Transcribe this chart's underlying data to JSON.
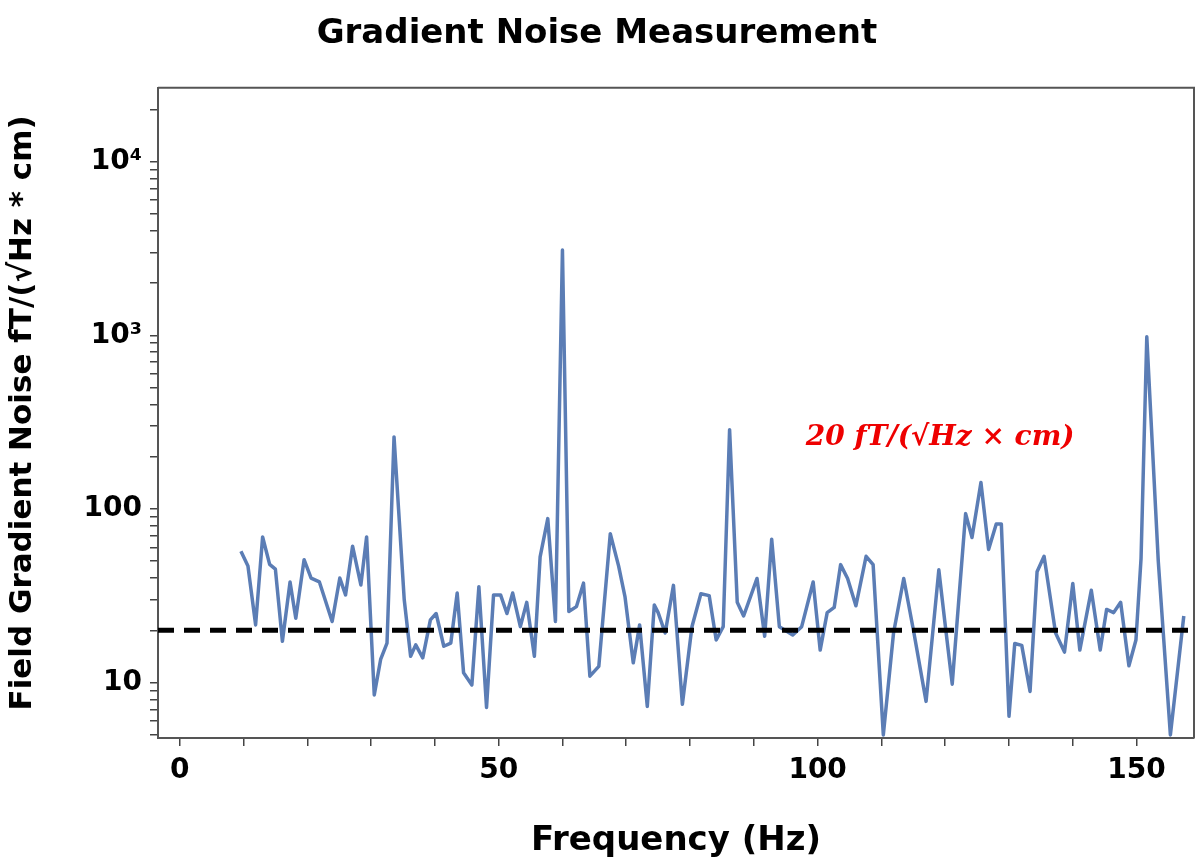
{
  "chart_data": {
    "type": "line",
    "title": "Gradient Noise Measurement",
    "xlabel": "Frequency (Hz)",
    "ylabel": "Field Gradient Noise fT/(√Hz * cm)",
    "log": "y",
    "grid": false,
    "legend": false,
    "marker": "none",
    "line_style": "solid",
    "xlim": [
      -3.4,
      159
    ],
    "xticks": [
      0,
      {
        "value": 10,
        "label": null
      },
      {
        "value": 20,
        "label": null
      },
      {
        "value": 30,
        "label": null
      },
      {
        "value": 40,
        "label": null
      },
      50,
      {
        "value": 60,
        "label": null
      },
      {
        "value": 70,
        "label": null
      },
      {
        "value": 80,
        "label": null
      },
      {
        "value": 90,
        "label": null
      },
      100,
      {
        "value": 110,
        "label": null
      },
      {
        "value": 120,
        "label": null
      },
      {
        "value": 130,
        "label": null
      },
      {
        "value": 140,
        "label": null
      },
      150
    ],
    "ylim": [
      4.8,
      26600
    ],
    "yticks": [
      {
        "value": 5,
        "label": null
      },
      {
        "value": 6,
        "label": null
      },
      {
        "value": 7,
        "label": null
      },
      {
        "value": 8,
        "label": null
      },
      {
        "value": 9,
        "label": null
      },
      10,
      {
        "value": 20,
        "label": null
      },
      {
        "value": 30,
        "label": null
      },
      {
        "value": 40,
        "label": null
      },
      {
        "value": 50,
        "label": null
      },
      {
        "value": 60,
        "label": null
      },
      {
        "value": 70,
        "label": null
      },
      {
        "value": 80,
        "label": null
      },
      {
        "value": 90,
        "label": null
      },
      100,
      {
        "value": 200,
        "label": null
      },
      {
        "value": 300,
        "label": null
      },
      {
        "value": 400,
        "label": null
      },
      {
        "value": 500,
        "label": null
      },
      {
        "value": 600,
        "label": null
      },
      {
        "value": 700,
        "label": null
      },
      {
        "value": 800,
        "label": null
      },
      {
        "value": 900,
        "label": null
      },
      {
        "value": 1000,
        "label": "10³"
      },
      {
        "value": 2000,
        "label": null
      },
      {
        "value": 3000,
        "label": null
      },
      {
        "value": 4000,
        "label": null
      },
      {
        "value": 5000,
        "label": null
      },
      {
        "value": 6000,
        "label": null
      },
      {
        "value": 7000,
        "label": null
      },
      {
        "value": 8000,
        "label": null
      },
      {
        "value": 9000,
        "label": null
      },
      {
        "value": 10000,
        "label": "10⁴"
      },
      {
        "value": 20000,
        "label": null
      }
    ],
    "ref_lines": [
      {
        "axis": "y",
        "value": 20,
        "color": "#000000",
        "line_style": "dashed"
      }
    ],
    "annotations": [
      "20 fT/(√Hz × cm)"
    ],
    "series": [
      {
        "color": "#5b7db5",
        "x": [
          9.6,
          10.7,
          11.9,
          13.0,
          14.1,
          15.0,
          16.1,
          17.3,
          18.2,
          19.5,
          20.6,
          21.9,
          23.9,
          25.1,
          26.0,
          27.1,
          28.4,
          29.3,
          30.5,
          31.5,
          32.5,
          33.6,
          35.2,
          36.2,
          37.0,
          38.1,
          39.3,
          40.2,
          41.4,
          42.5,
          43.5,
          44.5,
          45.8,
          46.9,
          48.1,
          49.2,
          50.3,
          51.3,
          52.2,
          53.4,
          54.4,
          55.6,
          56.5,
          57.7,
          58.9,
          60.0,
          61.0,
          62.2,
          63.3,
          64.3,
          65.7,
          67.5,
          68.8,
          69.8,
          71.1,
          72.1,
          73.3,
          74.4,
          75.0,
          76.1,
          77.4,
          78.8,
          80.3,
          81.7,
          83.0,
          84.1,
          85.2,
          86.2,
          87.4,
          88.4,
          90.5,
          91.7,
          92.8,
          94.0,
          96.1,
          97.5,
          99.3,
          100.4,
          101.5,
          102.6,
          103.6,
          104.7,
          106.0,
          107.6,
          108.7,
          110.3,
          111.9,
          113.5,
          115.1,
          117.0,
          119.0,
          119.9,
          121.1,
          122.1,
          123.2,
          124.2,
          125.6,
          126.8,
          128.0,
          128.8,
          130.0,
          130.9,
          132.0,
          133.3,
          134.4,
          135.5,
          137.3,
          138.7,
          140.0,
          141.1,
          142.9,
          144.3,
          145.3,
          146.4,
          147.5,
          148.8,
          149.9,
          150.7,
          151.6,
          153.4,
          155.3,
          157.4
        ],
        "values": [
          57,
          47,
          21.5,
          69,
          48,
          45,
          17.3,
          38,
          23.5,
          51,
          40,
          38,
          22.5,
          40,
          32,
          61,
          36.5,
          69,
          8.5,
          13.6,
          16.9,
          260,
          30,
          14.2,
          16.5,
          13.9,
          23,
          25,
          16.2,
          16.9,
          32.8,
          11.4,
          9.7,
          35.7,
          7.2,
          32,
          32,
          25,
          32.8,
          21,
          29,
          14.2,
          53,
          88,
          22.5,
          3100,
          25.7,
          27.4,
          37.4,
          10.9,
          12.4,
          72,
          47,
          31.3,
          13,
          21.5,
          7.3,
          28,
          25.3,
          19.3,
          36.3,
          7.5,
          21,
          32.5,
          31.7,
          17.6,
          21,
          286,
          29,
          24.2,
          39.8,
          18.5,
          67,
          21,
          18.8,
          21,
          38,
          15.4,
          25.3,
          27.1,
          47.8,
          39.8,
          27.7,
          53.4,
          47.8,
          5,
          19.3,
          39.8,
          19.3,
          7.8,
          44.6,
          23.1,
          9.8,
          29,
          94,
          68.5,
          142,
          58.5,
          82,
          82,
          6.4,
          16.8,
          16.4,
          8.9,
          43.5,
          53.4,
          19.3,
          15,
          37.2,
          15.4,
          34,
          15.4,
          26.4,
          25.3,
          29,
          12.5,
          17.6,
          52,
          980,
          50,
          5,
          24.2
        ]
      }
    ]
  }
}
